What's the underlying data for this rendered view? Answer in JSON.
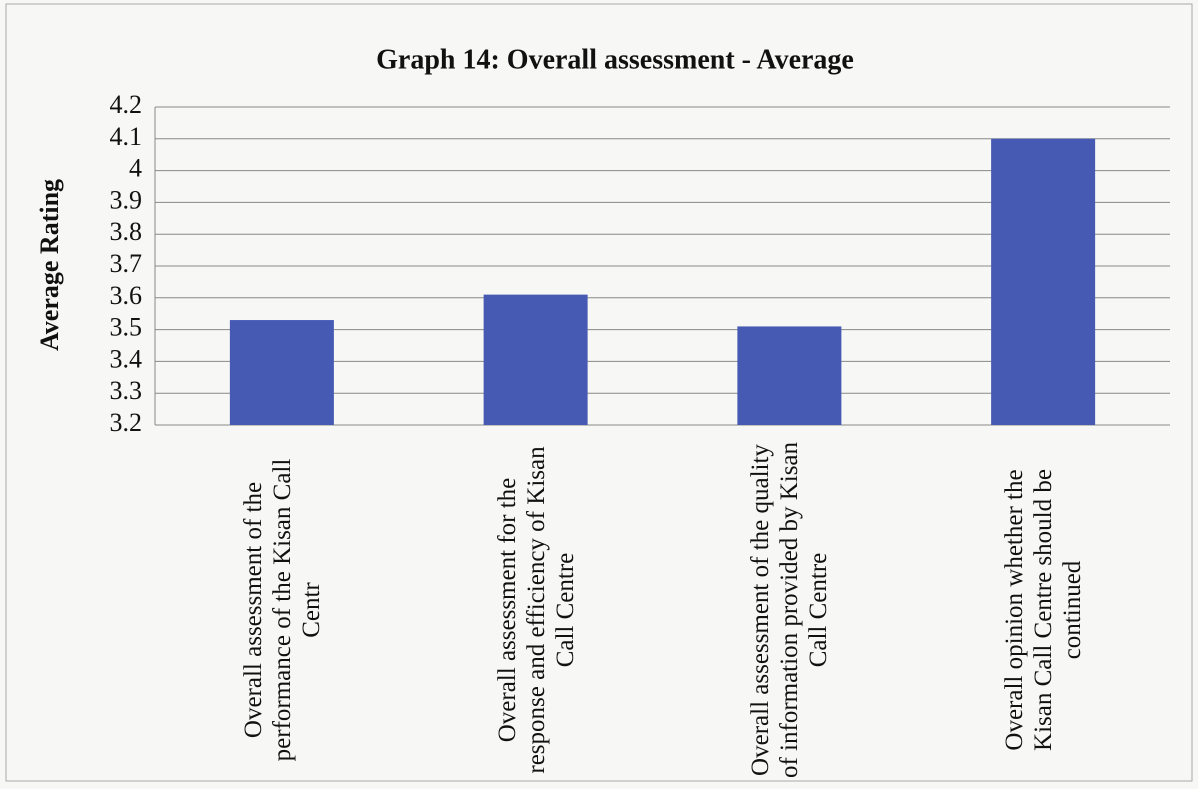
{
  "chart_data": {
    "type": "bar",
    "title": "Graph 14: Overall assessment - Average",
    "ylabel": "Average Rating",
    "categories": [
      "Overall assessment of the performance of the Kisan Call Centr",
      "Overall assessment for the response and efficiency of Kisan Call Centre",
      "Overall assessment of the quality of information provided by Kisan Call Centre",
      "Overall opinion whether the Kisan Call Centre should be continued"
    ],
    "values": [
      3.53,
      3.61,
      3.51,
      4.1
    ],
    "color": "#4659b3",
    "ylim": [
      3.2,
      4.2
    ],
    "yticks": [
      3.2,
      3.3,
      3.4,
      3.5,
      3.6,
      3.7,
      3.8,
      3.9,
      4,
      4.1,
      4.2
    ],
    "grid": true
  }
}
